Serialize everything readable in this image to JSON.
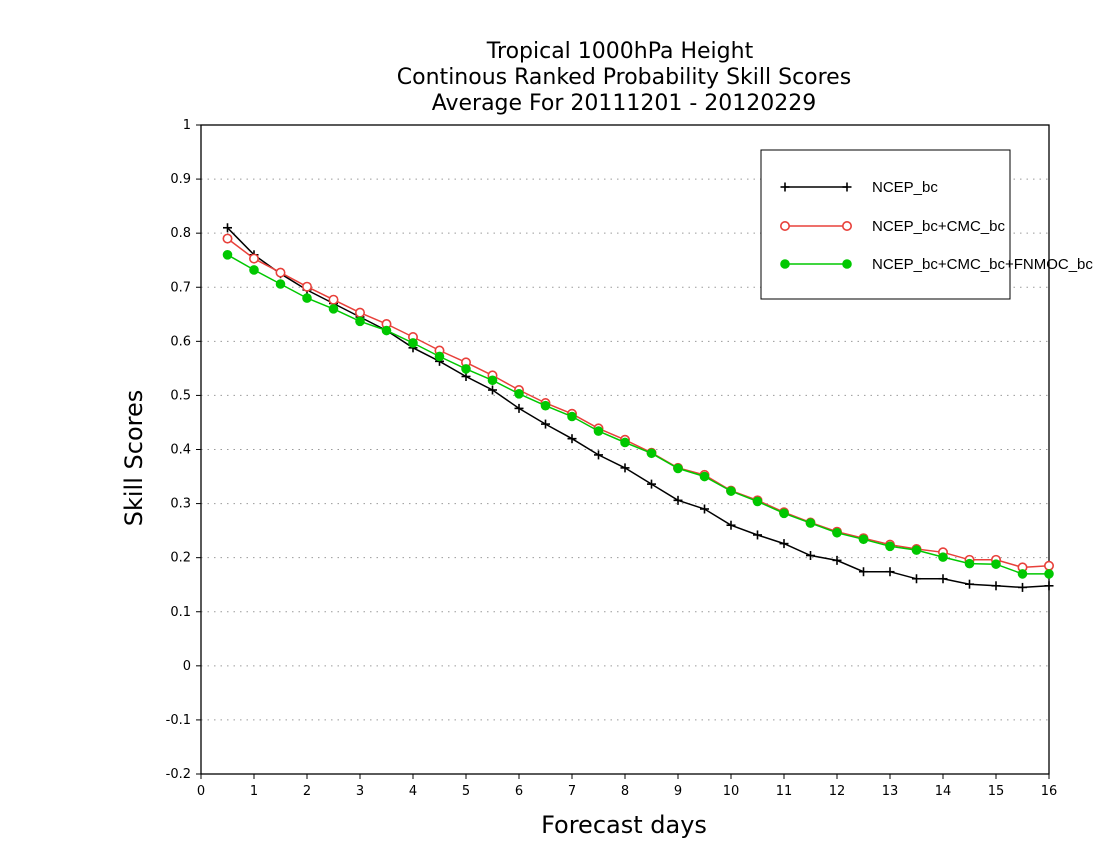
{
  "chart_data": {
    "type": "line",
    "title_lines": [
      "Tropical 1000hPa Height",
      "Continous Ranked Probability Skill Scores",
      "Average For 20111201 - 20120229"
    ],
    "xlabel": "Forecast days",
    "ylabel": "Skill Scores",
    "xlim": [
      0,
      16
    ],
    "ylim": [
      -0.2,
      1
    ],
    "xticks": [
      0,
      1,
      2,
      3,
      4,
      5,
      6,
      7,
      8,
      9,
      10,
      11,
      12,
      13,
      14,
      15,
      16
    ],
    "yticks": [
      -0.2,
      -0.1,
      0,
      0.1,
      0.2,
      0.3,
      0.4,
      0.5,
      0.6,
      0.7,
      0.8,
      0.9,
      1
    ],
    "ytick_labels": [
      "-0.2",
      "-0.1",
      "0",
      "0.1",
      "0.2",
      "0.3",
      "0.4",
      "0.5",
      "0.6",
      "0.7",
      "0.8",
      "0.9",
      "1"
    ],
    "grid": "horizontal dotted",
    "legend_position": "top-right",
    "x": [
      0.5,
      1,
      1.5,
      2,
      2.5,
      3,
      3.5,
      4,
      4.5,
      5,
      5.5,
      6,
      6.5,
      7,
      7.5,
      8,
      8.5,
      9,
      9.5,
      10,
      10.5,
      11,
      11.5,
      12,
      12.5,
      13,
      13.5,
      14,
      14.5,
      15,
      15.5,
      16
    ],
    "series": [
      {
        "name": "NCEP_bc",
        "color": "#000000",
        "marker": "plus",
        "values": [
          0.81,
          0.76,
          0.725,
          0.695,
          0.67,
          0.645,
          0.62,
          0.588,
          0.563,
          0.535,
          0.51,
          0.476,
          0.447,
          0.42,
          0.39,
          0.366,
          0.336,
          0.306,
          0.29,
          0.26,
          0.242,
          0.226,
          0.204,
          0.195,
          0.174,
          0.174,
          0.161,
          0.161,
          0.151,
          0.148,
          0.145,
          0.148
        ]
      },
      {
        "name": "NCEP_bc+CMC_bc",
        "color": "#e8403a",
        "marker": "open-circle",
        "values": [
          0.79,
          0.753,
          0.727,
          0.701,
          0.677,
          0.653,
          0.632,
          0.608,
          0.583,
          0.561,
          0.537,
          0.51,
          0.486,
          0.466,
          0.439,
          0.418,
          0.394,
          0.366,
          0.353,
          0.324,
          0.306,
          0.284,
          0.265,
          0.248,
          0.236,
          0.224,
          0.216,
          0.21,
          0.196,
          0.196,
          0.182,
          0.185
        ]
      },
      {
        "name": "NCEP_bc+CMC_bc+FNMOC_bc",
        "color": "#00c800",
        "marker": "filled-circle",
        "values": [
          0.76,
          0.732,
          0.706,
          0.68,
          0.66,
          0.637,
          0.62,
          0.597,
          0.572,
          0.549,
          0.528,
          0.503,
          0.481,
          0.461,
          0.434,
          0.413,
          0.393,
          0.365,
          0.35,
          0.323,
          0.304,
          0.282,
          0.264,
          0.246,
          0.234,
          0.221,
          0.214,
          0.201,
          0.189,
          0.188,
          0.17,
          0.17
        ]
      }
    ]
  }
}
